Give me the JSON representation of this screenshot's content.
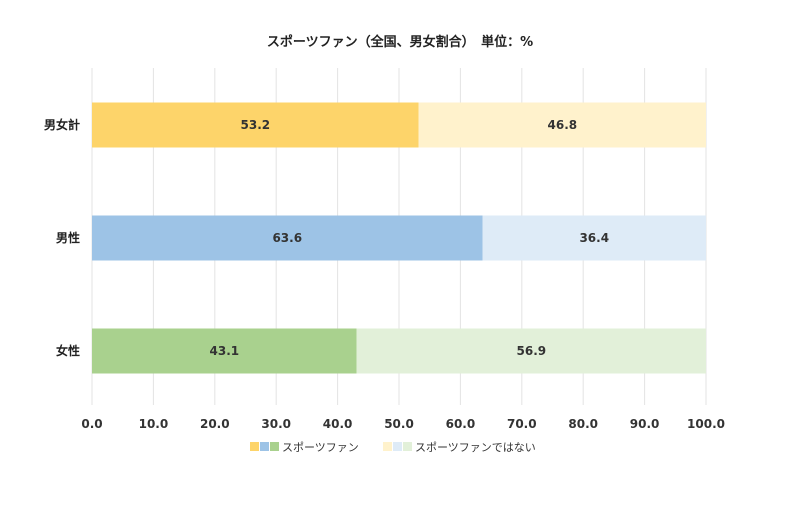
{
  "chart_data": {
    "type": "bar",
    "orientation": "horizontal",
    "stacked": true,
    "title": "スポーツファン（全国、男女割合）　単位：%",
    "categories": [
      "男女計",
      "男性",
      "女性"
    ],
    "series": [
      {
        "name": "スポーツファン",
        "values": [
          53.2,
          63.6,
          43.1
        ],
        "colors": [
          "#FDD46A",
          "#9DC3E6",
          "#A9D18E"
        ]
      },
      {
        "name": "スポーツファンではない",
        "values": [
          46.8,
          36.4,
          56.9
        ],
        "colors": [
          "#FFF2CC",
          "#DEEBF7",
          "#E2F0D9"
        ]
      }
    ],
    "xlim": [
      0,
      100
    ],
    "xticks": [
      "0.0",
      "10.0",
      "20.0",
      "30.0",
      "40.0",
      "50.0",
      "60.0",
      "70.0",
      "80.0",
      "90.0",
      "100.0"
    ],
    "grid": true,
    "legend": "bottom"
  }
}
